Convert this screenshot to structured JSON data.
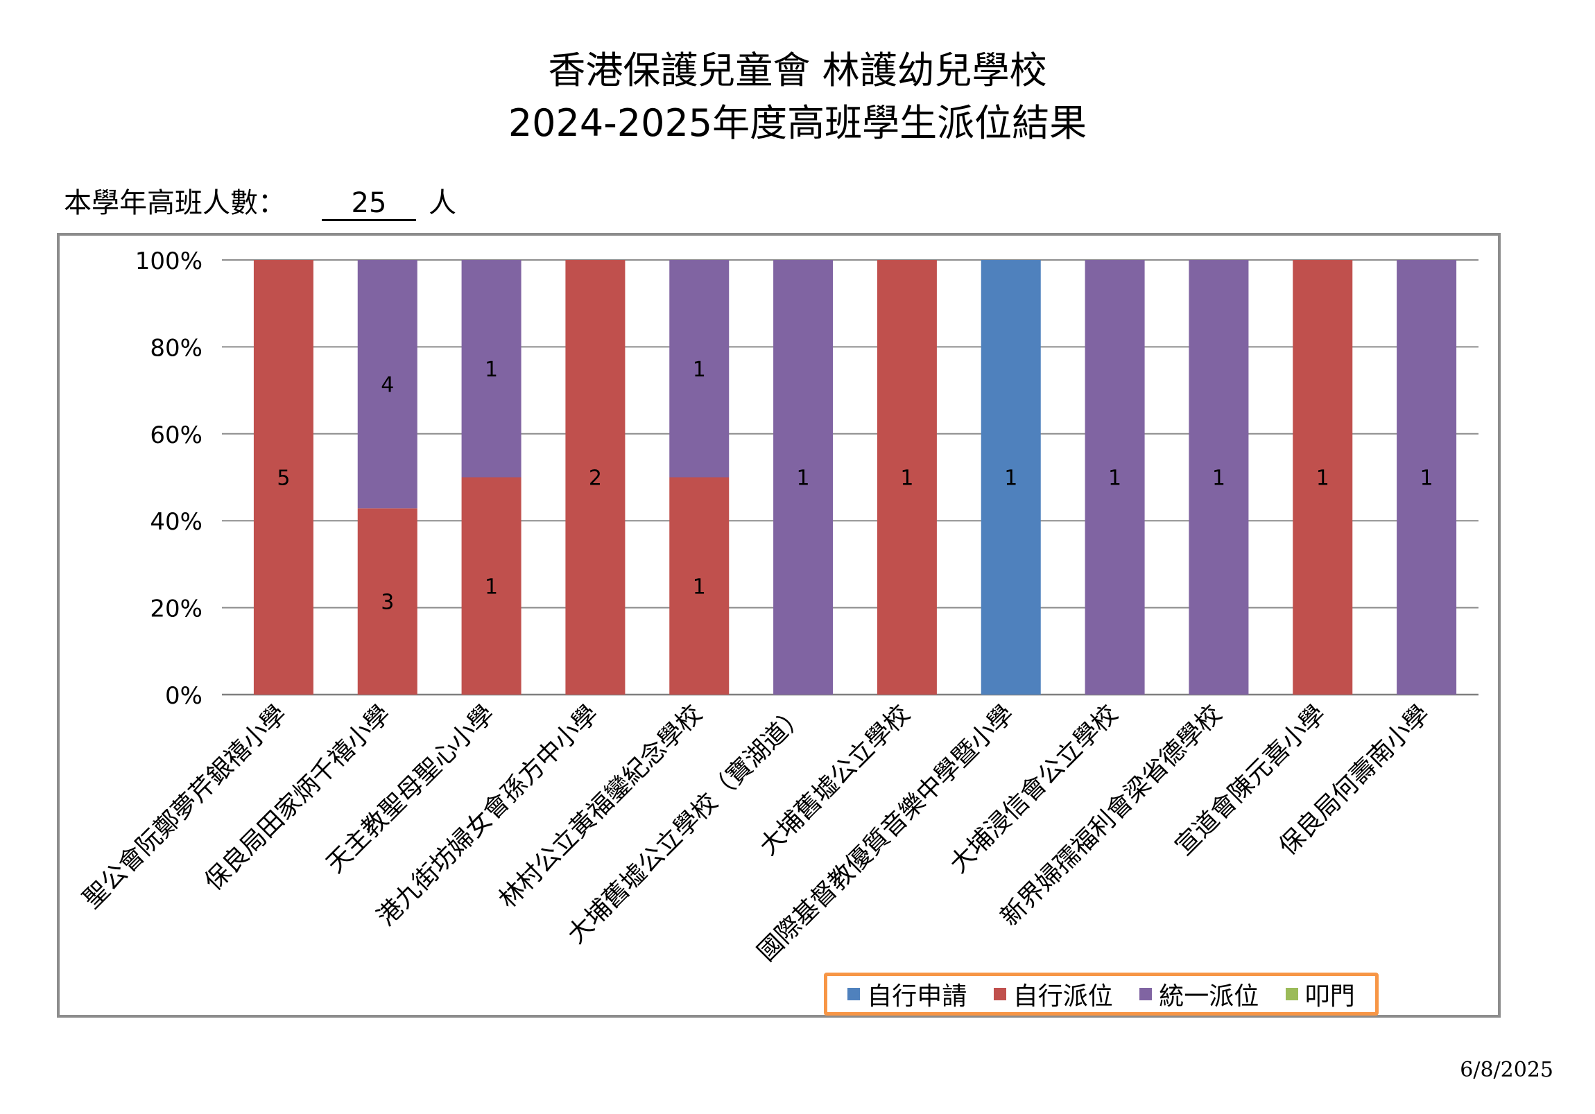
{
  "header": {
    "title_line1": "香港保護兒童會 林護幼兒學校",
    "title_line2": "2024-2025年度高班學生派位結果",
    "count_label": "本學年高班人數：",
    "count_value": "25",
    "count_unit": "人"
  },
  "footer": {
    "date": "6/8/2025"
  },
  "legend": [
    {
      "name": "自行申請",
      "color": "#4f81bd"
    },
    {
      "name": "自行派位",
      "color": "#c0504d"
    },
    {
      "name": "統一派位",
      "color": "#8064a2"
    },
    {
      "name": "叩門",
      "color": "#9bbb59"
    }
  ],
  "chart_data": {
    "type": "bar",
    "stacked": "percent",
    "categories": [
      "聖公會阮鄭夢芹銀禧小學",
      "保良局田家炳千禧小學",
      "天主教聖母聖心小學",
      "港九街坊婦女會孫方中小學",
      "林村公立黃福鑾紀念學校",
      "大埔舊墟公立學校（寶湖道）",
      "大埔舊墟公立學校",
      "國際基督教優質音樂中學暨小學",
      "大埔浸信會公立學校",
      "新界婦孺福利會梁省德學校",
      "宣道會陳元喜小學",
      "保良局何壽南小學"
    ],
    "series": [
      {
        "name": "自行申請",
        "color": "#4f81bd",
        "values": [
          0,
          0,
          0,
          0,
          0,
          0,
          0,
          1,
          0,
          0,
          0,
          0
        ]
      },
      {
        "name": "自行派位",
        "color": "#c0504d",
        "values": [
          5,
          3,
          1,
          2,
          1,
          0,
          1,
          0,
          0,
          0,
          1,
          0
        ]
      },
      {
        "name": "統一派位",
        "color": "#8064a2",
        "values": [
          0,
          4,
          1,
          0,
          1,
          1,
          0,
          0,
          1,
          1,
          0,
          1
        ]
      },
      {
        "name": "叩門",
        "color": "#9bbb59",
        "values": [
          0,
          0,
          0,
          0,
          0,
          0,
          0,
          0,
          0,
          0,
          0,
          0
        ]
      }
    ],
    "yticks": [
      "0%",
      "20%",
      "40%",
      "60%",
      "80%",
      "100%"
    ],
    "ylim": [
      0,
      100
    ],
    "grid": true,
    "legend_position": "bottom-right"
  }
}
